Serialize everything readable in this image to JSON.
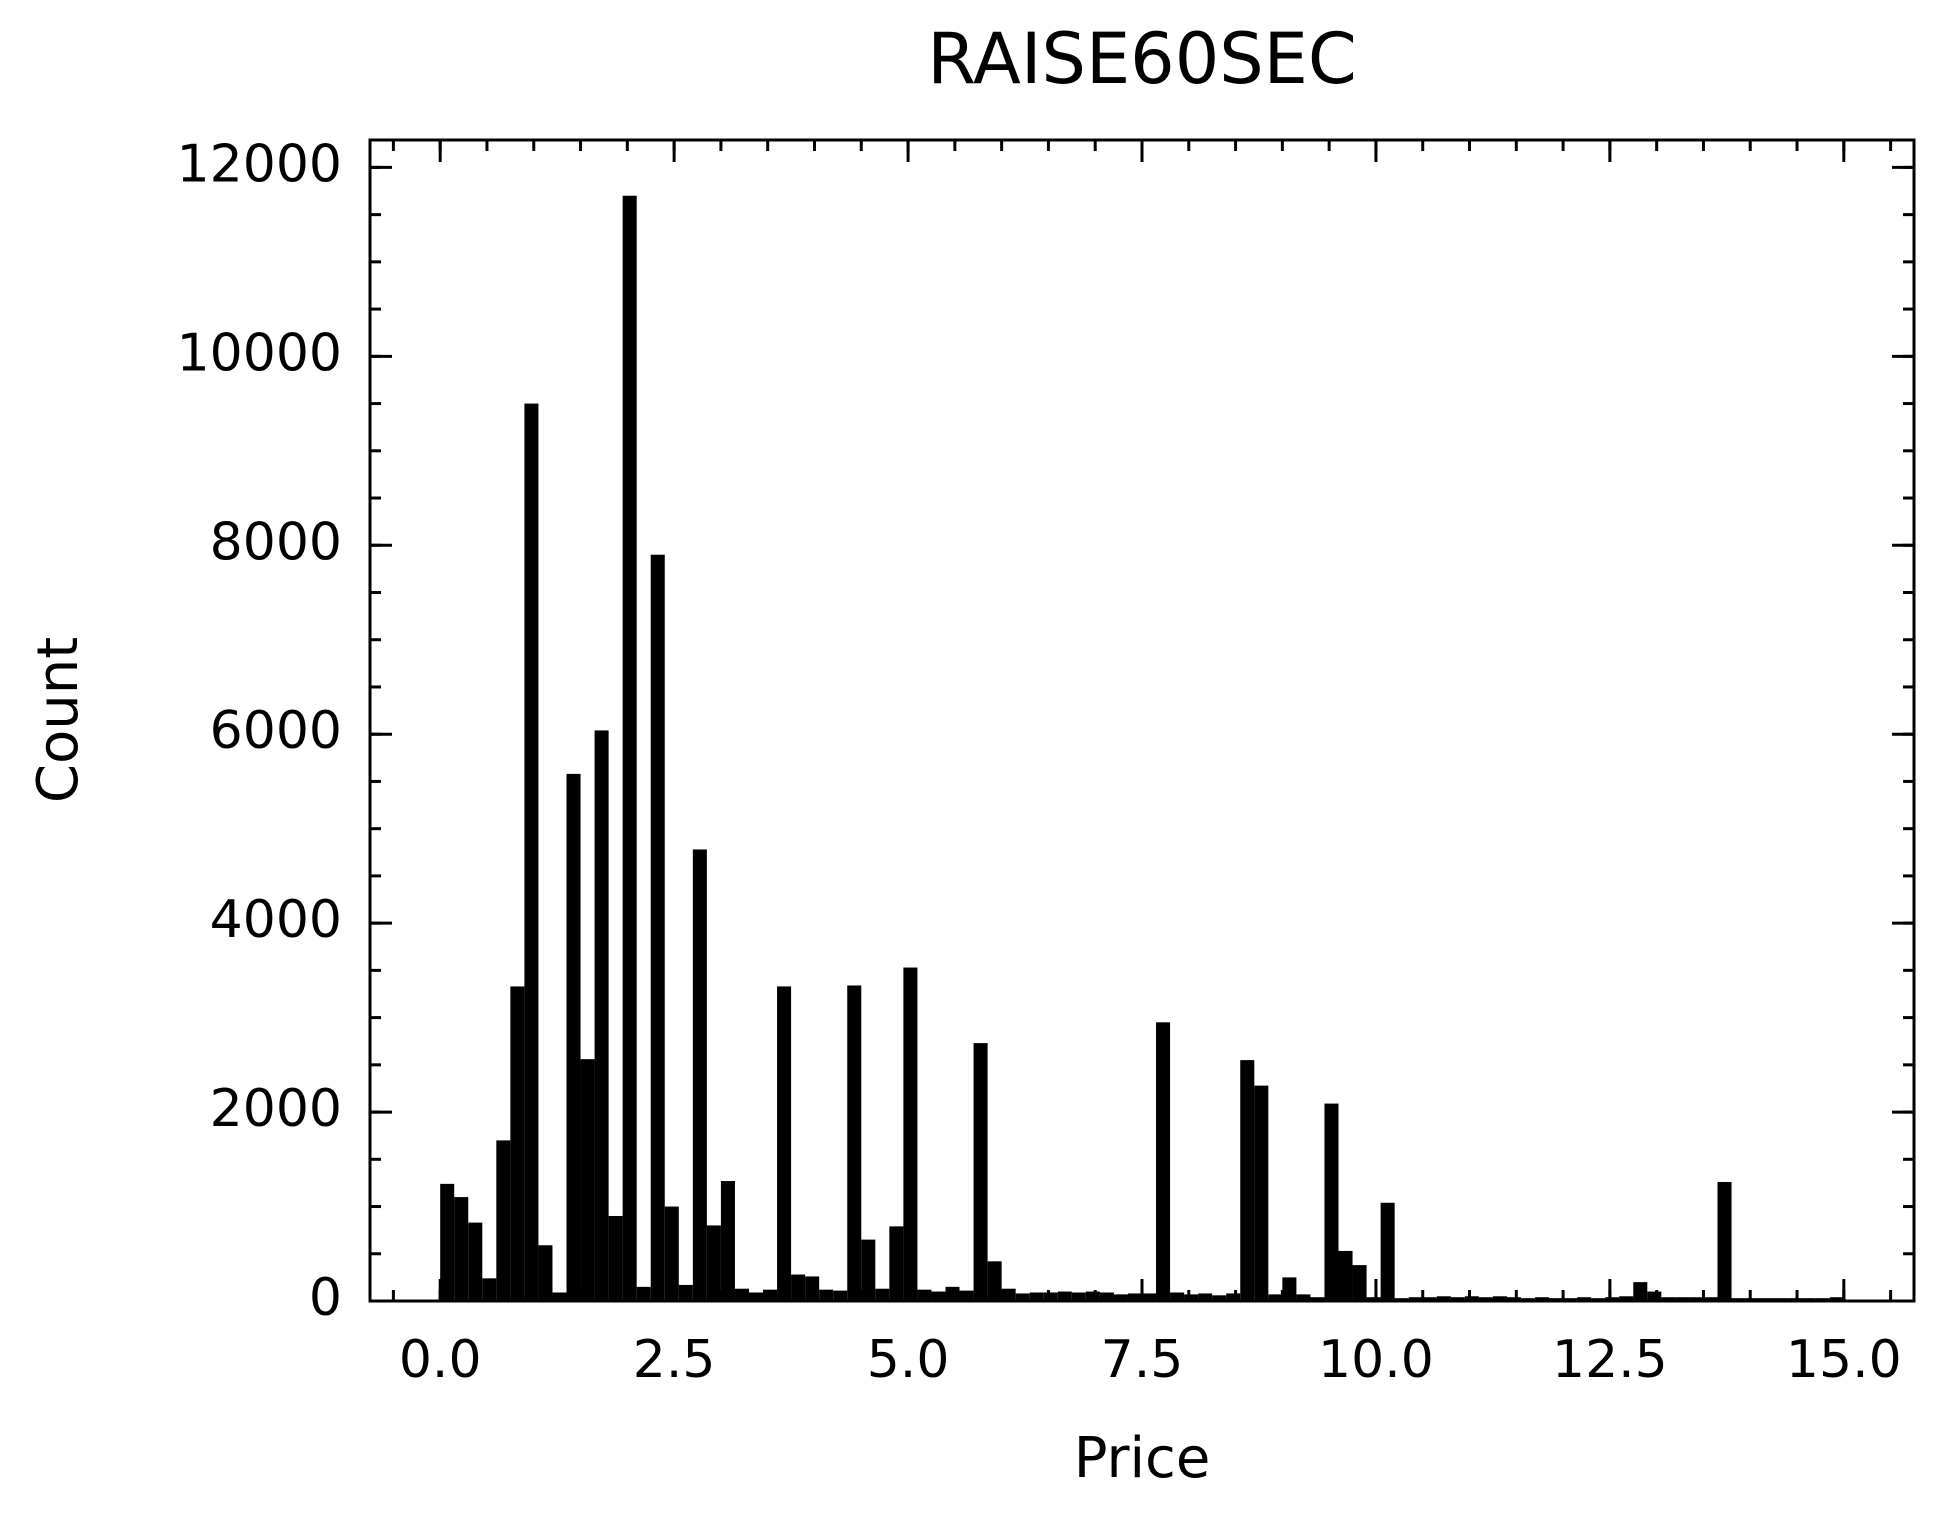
{
  "chart_data": {
    "type": "histogram",
    "title": "RAISE60SEC",
    "x_label": "Price",
    "y_label": "Count",
    "color": "#000000",
    "bins": [
      0,
      0.15,
      0.3,
      0.45,
      0.6,
      0.75,
      0.9,
      1.05,
      1.2,
      1.35,
      1.5,
      1.65,
      1.8,
      1.95,
      2.1,
      2.25,
      2.4,
      2.55,
      2.7,
      2.85,
      3,
      3.15,
      3.3,
      3.45,
      3.6,
      3.75,
      3.9,
      4.05,
      4.2,
      4.35,
      4.5,
      4.65,
      4.8,
      4.95,
      5.1,
      5.25,
      5.4,
      5.55,
      5.7,
      5.85,
      6,
      6.15,
      6.3,
      6.45,
      6.6,
      6.75,
      6.9,
      7.05,
      7.2,
      7.35,
      7.5,
      7.65,
      7.8,
      7.95,
      8.1,
      8.25,
      8.4,
      8.55,
      8.7,
      8.85,
      9,
      9.15,
      9.3,
      9.45,
      9.6,
      9.75,
      9.9,
      10.05,
      10.2,
      10.35,
      10.5,
      10.65,
      10.8,
      10.95,
      11.1,
      11.25,
      11.4,
      11.55,
      11.7,
      11.85,
      12,
      12.15,
      12.3,
      12.45,
      12.6,
      12.75,
      12.9,
      13.05,
      13.2,
      13.35,
      13.5,
      13.65,
      13.8,
      13.95,
      14.1,
      14.25,
      14.4,
      14.55,
      14.7,
      14.85,
      15
    ],
    "values": [
      1240,
      1100,
      830,
      240,
      1700,
      3330,
      9500,
      590,
      90,
      5580,
      2560,
      6040,
      900,
      11700,
      150,
      7900,
      1000,
      170,
      4780,
      800,
      1270,
      130,
      90,
      120,
      3330,
      280,
      260,
      120,
      110,
      3340,
      650,
      130,
      790,
      3530,
      120,
      100,
      150,
      110,
      2730,
      420,
      130,
      80,
      90,
      90,
      100,
      90,
      100,
      90,
      70,
      80,
      80,
      2950,
      90,
      70,
      80,
      60,
      80,
      2550,
      2280,
      70,
      250,
      70,
      40,
      2090,
      530,
      380,
      40,
      1040,
      30,
      40,
      40,
      50,
      40,
      50,
      40,
      50,
      40,
      30,
      40,
      30,
      30,
      40,
      30,
      40,
      50,
      200,
      100,
      40,
      40,
      40,
      40,
      1260,
      30,
      30,
      30,
      30,
      30,
      30,
      30,
      40
    ],
    "xlim": [
      -0.75,
      15.75
    ],
    "ylim": [
      0,
      12290
    ],
    "xticks": [
      {
        "value": 0,
        "label": "0.0"
      },
      2.5,
      {
        "value": 5,
        "label": "5.0"
      },
      7.5,
      {
        "value": 10,
        "label": "10.0"
      },
      12.5,
      {
        "value": 15,
        "label": "15.0"
      }
    ],
    "yticks": [
      0,
      2000,
      4000,
      6000,
      8000,
      10000,
      12000
    ]
  }
}
